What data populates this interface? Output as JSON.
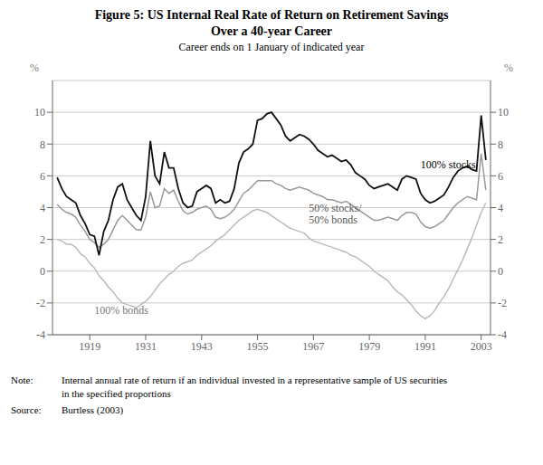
{
  "chart_data": {
    "type": "line",
    "title": "Figure 5: US Internal Real Rate of Return on Retirement Savings\nOver a 40-year Career",
    "subtitle": "Career ends on 1 January of indicated year",
    "ylabel": "%",
    "y2label": "%",
    "xlim": [
      1911,
      2005
    ],
    "ylim": [
      -4,
      12
    ],
    "yticks": [
      -4,
      -2,
      0,
      2,
      4,
      6,
      8,
      10
    ],
    "y2lim": [
      -4,
      12
    ],
    "y2ticks": [
      -4,
      -2,
      0,
      2,
      4,
      6,
      8,
      10
    ],
    "xticks": [
      1919,
      1931,
      1943,
      1955,
      1967,
      1979,
      1991,
      2003
    ],
    "grid": true,
    "x": [
      1912,
      1913,
      1914,
      1915,
      1916,
      1917,
      1918,
      1919,
      1920,
      1921,
      1922,
      1923,
      1924,
      1925,
      1926,
      1927,
      1928,
      1929,
      1930,
      1931,
      1932,
      1933,
      1934,
      1935,
      1936,
      1937,
      1938,
      1939,
      1940,
      1941,
      1942,
      1943,
      1944,
      1945,
      1946,
      1947,
      1948,
      1949,
      1950,
      1951,
      1952,
      1953,
      1954,
      1955,
      1956,
      1957,
      1958,
      1959,
      1960,
      1961,
      1962,
      1963,
      1964,
      1965,
      1966,
      1967,
      1968,
      1969,
      1970,
      1971,
      1972,
      1973,
      1974,
      1975,
      1976,
      1977,
      1978,
      1979,
      1980,
      1981,
      1982,
      1983,
      1984,
      1985,
      1986,
      1987,
      1988,
      1989,
      1990,
      1991,
      1992,
      1993,
      1994,
      1995,
      1996,
      1997,
      1998,
      1999,
      2000,
      2001,
      2002,
      2003,
      2004
    ],
    "series": [
      {
        "name": "100% bonds",
        "color": "#bbbbbb",
        "values": [
          2.0,
          1.9,
          1.7,
          1.7,
          1.5,
          1.1,
          0.9,
          0.5,
          0.2,
          -0.3,
          -0.6,
          -1.0,
          -1.3,
          -1.7,
          -2.0,
          -2.1,
          -2.2,
          -2.3,
          -2.1,
          -1.9,
          -1.6,
          -1.2,
          -0.8,
          -0.5,
          -0.2,
          0.0,
          0.3,
          0.5,
          0.6,
          0.7,
          1.0,
          1.2,
          1.4,
          1.6,
          1.9,
          2.1,
          2.3,
          2.6,
          2.9,
          3.2,
          3.4,
          3.6,
          3.8,
          3.9,
          3.8,
          3.7,
          3.5,
          3.3,
          3.1,
          2.9,
          2.7,
          2.6,
          2.5,
          2.4,
          2.1,
          1.9,
          1.8,
          1.7,
          1.6,
          1.5,
          1.4,
          1.3,
          1.2,
          1.0,
          0.9,
          0.7,
          0.5,
          0.3,
          0.0,
          -0.2,
          -0.4,
          -0.6,
          -1.0,
          -1.3,
          -1.5,
          -1.8,
          -2.1,
          -2.5,
          -2.8,
          -3.0,
          -2.8,
          -2.5,
          -2.0,
          -1.6,
          -1.1,
          -0.5,
          0.1,
          0.7,
          1.4,
          2.1,
          2.9,
          3.7,
          4.3
        ]
      },
      {
        "name": "50% stocks/\n50% bonds",
        "color": "#999999",
        "values": [
          4.2,
          3.9,
          3.7,
          3.6,
          3.4,
          2.9,
          2.5,
          2.0,
          1.8,
          1.5,
          1.7,
          2.0,
          2.6,
          3.2,
          3.5,
          3.2,
          2.9,
          2.6,
          2.6,
          3.4,
          5.0,
          4.0,
          4.1,
          5.2,
          4.9,
          5.1,
          4.4,
          3.8,
          3.6,
          3.7,
          3.9,
          4.0,
          4.1,
          3.9,
          3.4,
          3.3,
          3.4,
          3.6,
          3.9,
          4.4,
          4.9,
          5.1,
          5.4,
          5.7,
          5.7,
          5.7,
          5.7,
          5.5,
          5.4,
          5.2,
          5.1,
          5.2,
          5.3,
          5.2,
          5.1,
          4.9,
          4.8,
          4.7,
          4.5,
          4.5,
          4.4,
          4.3,
          4.4,
          4.2,
          4.0,
          3.8,
          3.6,
          3.4,
          3.2,
          3.2,
          3.3,
          3.4,
          3.3,
          3.2,
          3.5,
          3.7,
          3.7,
          3.6,
          3.1,
          2.8,
          2.7,
          2.8,
          3.0,
          3.2,
          3.6,
          4.0,
          4.3,
          4.5,
          4.7,
          4.6,
          4.5,
          7.4,
          5.1
        ]
      },
      {
        "name": "100% stocks",
        "color": "#111111",
        "values": [
          5.9,
          5.2,
          4.7,
          4.5,
          4.3,
          3.5,
          3.0,
          2.3,
          2.2,
          1.0,
          2.5,
          3.2,
          4.5,
          5.3,
          5.5,
          4.5,
          4.0,
          3.5,
          3.2,
          4.7,
          8.2,
          6.0,
          5.5,
          7.5,
          6.5,
          6.5,
          5.2,
          4.3,
          4.0,
          4.1,
          5.0,
          5.2,
          5.4,
          5.2,
          4.3,
          4.5,
          4.3,
          4.4,
          5.2,
          6.8,
          7.5,
          7.7,
          8.0,
          9.5,
          9.6,
          9.9,
          10.0,
          9.6,
          9.2,
          8.5,
          8.2,
          8.4,
          8.6,
          8.5,
          8.3,
          8.0,
          7.6,
          7.4,
          7.2,
          7.3,
          7.1,
          6.9,
          7.0,
          6.7,
          6.2,
          6.0,
          5.8,
          5.4,
          5.2,
          5.3,
          5.4,
          5.5,
          5.3,
          5.1,
          5.8,
          6.0,
          5.9,
          5.8,
          4.9,
          4.5,
          4.3,
          4.4,
          4.6,
          4.8,
          5.3,
          5.9,
          6.3,
          6.5,
          6.6,
          6.4,
          6.3,
          9.8,
          7.0
        ]
      }
    ],
    "annotations": [
      {
        "text": "100% stocks",
        "x": 1990,
        "y": 6.5,
        "color": "#000000"
      },
      {
        "text": "50% stocks/\n50% bonds",
        "x": 1966,
        "y": 3.0,
        "color": "#555555"
      },
      {
        "text": "100% bonds",
        "x": 1920,
        "y": -2.7,
        "color": "#777777"
      }
    ],
    "note_label": "Note:",
    "note": [
      "Internal annual rate of return if an individual invested in a representative sample of US securities",
      "in the specified proportions"
    ],
    "source_label": "Source:",
    "source": "Burtless (2003)"
  }
}
